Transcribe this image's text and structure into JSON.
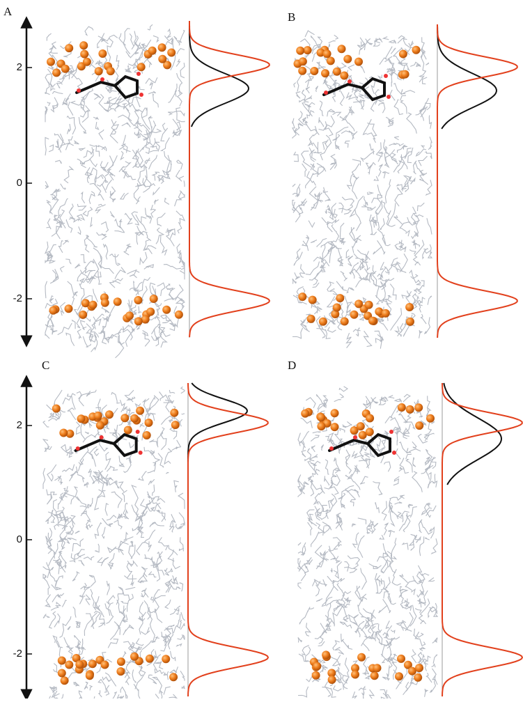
{
  "panels": [
    {
      "label": "A",
      "ticks": [
        2,
        0,
        -2
      ]
    },
    {
      "label": "B"
    },
    {
      "label": "C",
      "ticks": [
        2,
        0,
        -2
      ]
    },
    {
      "label": "D"
    }
  ]
}
